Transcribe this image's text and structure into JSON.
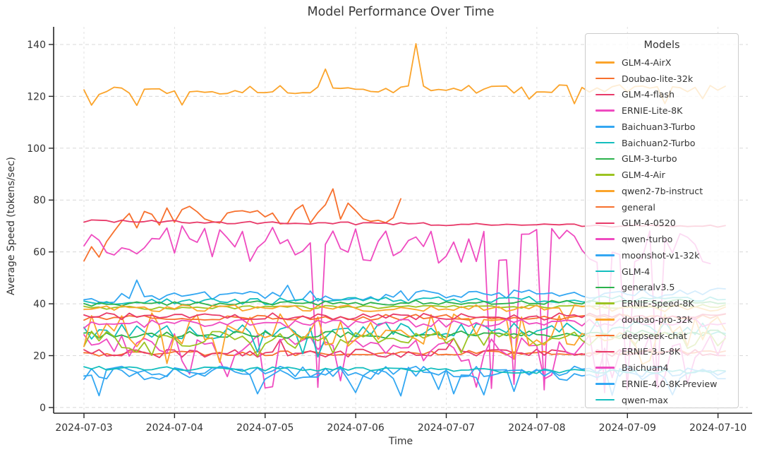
{
  "chart_data": {
    "type": "line",
    "title": "Model Performance Over Time",
    "xlabel": "Time",
    "ylabel": "Average Speed (tokens/sec)",
    "grid": true,
    "legend": {
      "title": "Models",
      "position": "upper right",
      "frame_alpha": 0.8
    },
    "x_tick_labels": [
      "2024-07-03",
      "2024-07-04",
      "2024-07-05",
      "2024-07-06",
      "2024-07-07",
      "2024-07-08",
      "2024-07-09",
      "2024-07-10"
    ],
    "y_ticks": [
      0,
      20,
      40,
      60,
      80,
      100,
      120,
      140
    ],
    "xlim_days": [
      -0.335,
      7.33
    ],
    "ylim": [
      -2.2,
      146.8
    ],
    "step_days": 0.0833,
    "series": [
      {
        "name": "GLM-4-AirX",
        "color": "#FBA42B",
        "t0": 0,
        "t1": 7.1,
        "base": 122.3,
        "trend": 0.1,
        "amp": 1.6,
        "seed": 13,
        "events": {
          "prob": 0.05,
          "min": 116.5,
          "max": 119.5
        },
        "anchors": [
          [
            0.58,
            116.5
          ],
          [
            2.68,
            130.5
          ],
          [
            3.665,
            140.3
          ],
          [
            6.4,
            117.2
          ]
        ]
      },
      {
        "name": "Doubao-lite-32k",
        "color": "#F7702D",
        "t0": 0,
        "t1": 3.56,
        "base": 72.5,
        "trend": 0.8,
        "amp": 4.2,
        "seed": 110,
        "anchors": [
          [
            0,
            56.5
          ],
          [
            0.083,
            62
          ],
          [
            0.166,
            58
          ],
          [
            0.25,
            64
          ],
          [
            0.333,
            68
          ],
          [
            2.72,
            84.3
          ],
          [
            3.49,
            80.5
          ]
        ]
      },
      {
        "name": "GLM-4-flash",
        "color": "#E83A69",
        "t0": 0,
        "t1": 7.1,
        "base": 71.9,
        "trend": -0.3,
        "amp": 0.55,
        "seed": 207
      },
      {
        "name": "ERNIE-Lite-8K",
        "color": "#EF4BC0",
        "t0": 0,
        "t1": 6.95,
        "base": 63.5,
        "trend": -0.2,
        "amp": 7,
        "seed": 304,
        "events": {
          "prob": 0.08,
          "min": 4.5,
          "max": 11
        }
      },
      {
        "name": "Baichuan3-Turbo",
        "color": "#33A7F2",
        "t0": 0,
        "t1": 7.1,
        "base": 42.2,
        "trend": 0.3,
        "amp": 2.1,
        "seed": 401,
        "events": {
          "prob": 0.05,
          "min": 45.5,
          "max": 49.5
        }
      },
      {
        "name": "Baichuan2-Turbo",
        "color": "#13BEBE",
        "t0": 0,
        "t1": 7.1,
        "base": 40.4,
        "trend": 0.25,
        "amp": 1.3,
        "seed": 498
      },
      {
        "name": "GLM-3-turbo",
        "color": "#2BB24C",
        "t0": 0,
        "t1": 7.1,
        "base": 39.9,
        "trend": 0.15,
        "amp": 0.9,
        "seed": 595
      },
      {
        "name": "GLM-4-Air",
        "color": "#9CC322",
        "t0": 0,
        "t1": 7.1,
        "base": 38.4,
        "trend": 0.1,
        "amp": 0.7,
        "seed": 692
      },
      {
        "name": "qwen2-7b-instruct",
        "color": "#FBA42B",
        "t0": 0,
        "t1": 7.1,
        "base": 38.3,
        "trend": 0,
        "amp": 1.3,
        "seed": 789,
        "events": {
          "prob": 0.05,
          "min": 32.5,
          "max": 35
        }
      },
      {
        "name": "general",
        "color": "#F7702D",
        "t0": 0,
        "t1": 7.1,
        "base": 20.7,
        "trend": 0.1,
        "amp": 0.9,
        "seed": 886
      },
      {
        "name": "GLM-4-0520",
        "color": "#E83A69",
        "t0": 0,
        "t1": 7.1,
        "base": 20.9,
        "trend": 0,
        "amp": 1.7,
        "seed": 983,
        "events": {
          "prob": 0.06,
          "min": 24,
          "max": 27
        }
      },
      {
        "name": "qwen-turbo",
        "color": "#EF4BC0",
        "t0": 0,
        "t1": 7.1,
        "base": 23,
        "trend": 0,
        "amp": 5.5,
        "seed": 1080,
        "events": {
          "prob": 0.15,
          "min": 7.5,
          "max": 13
        }
      },
      {
        "name": "moonshot-v1-32k",
        "color": "#33A7F2",
        "t0": 0,
        "t1": 7.1,
        "base": 13.8,
        "trend": 0,
        "amp": 2.1,
        "seed": 1177,
        "events": {
          "prob": 0.07,
          "min": 4.5,
          "max": 8
        }
      },
      {
        "name": "GLM-4",
        "color": "#13BEBE",
        "t0": 0,
        "t1": 7.1,
        "base": 29,
        "trend": 0.25,
        "amp": 3.0,
        "seed": 1274,
        "events": {
          "prob": 0.05,
          "min": 18.5,
          "max": 22.5
        }
      },
      {
        "name": "generalv3.5",
        "color": "#2BB24C",
        "t0": 0,
        "t1": 7.1,
        "base": 27.8,
        "trend": 0.1,
        "amp": 1.4,
        "seed": 1371
      },
      {
        "name": "ERNIE-Speed-8K",
        "color": "#9CC322",
        "t0": 0,
        "t1": 7.1,
        "base": 26,
        "trend": 0,
        "amp": 3.4,
        "seed": 1468,
        "events": {
          "prob": 0.07,
          "min": 19.5,
          "max": 22
        }
      },
      {
        "name": "doubao-pro-32k",
        "color": "#FBA42B",
        "t0": 0,
        "t1": 7.1,
        "base": 30,
        "trend": 0,
        "amp": 6.5,
        "seed": 1565,
        "events": {
          "prob": 0.06,
          "min": 15,
          "max": 19
        }
      },
      {
        "name": "deepseek-chat",
        "color": "#F7702D",
        "t0": 0,
        "t1": 7.1,
        "base": 34.4,
        "trend": 0.1,
        "amp": 1.1,
        "seed": 1662
      },
      {
        "name": "ERNIE-3.5-8K",
        "color": "#E83A69",
        "t0": 0,
        "t1": 7.1,
        "base": 35.1,
        "trend": 0,
        "amp": 1.4,
        "seed": 1759
      },
      {
        "name": "Baichuan4",
        "color": "#EF4BC0",
        "t0": 0,
        "t1": 7.1,
        "base": 32.1,
        "trend": 0.1,
        "amp": 1.6,
        "seed": 1856
      },
      {
        "name": "ERNIE-4.0-8K-Preview",
        "color": "#33A7F2",
        "t0": 0,
        "t1": 7.1,
        "base": 13.2,
        "trend": 0,
        "amp": 2.7,
        "seed": 1953,
        "events": {
          "prob": 0.08,
          "min": 3.8,
          "max": 7
        }
      },
      {
        "name": "qwen-max",
        "color": "#13BEBE",
        "t0": 0,
        "t1": 7.1,
        "base": 15.3,
        "trend": -0.25,
        "amp": 0.9,
        "seed": 2050
      }
    ],
    "style": {
      "spine_color": "#262626",
      "grid_color": "#d8d8d8",
      "tick_label_color": "#333333",
      "line_width": 1.8
    }
  }
}
